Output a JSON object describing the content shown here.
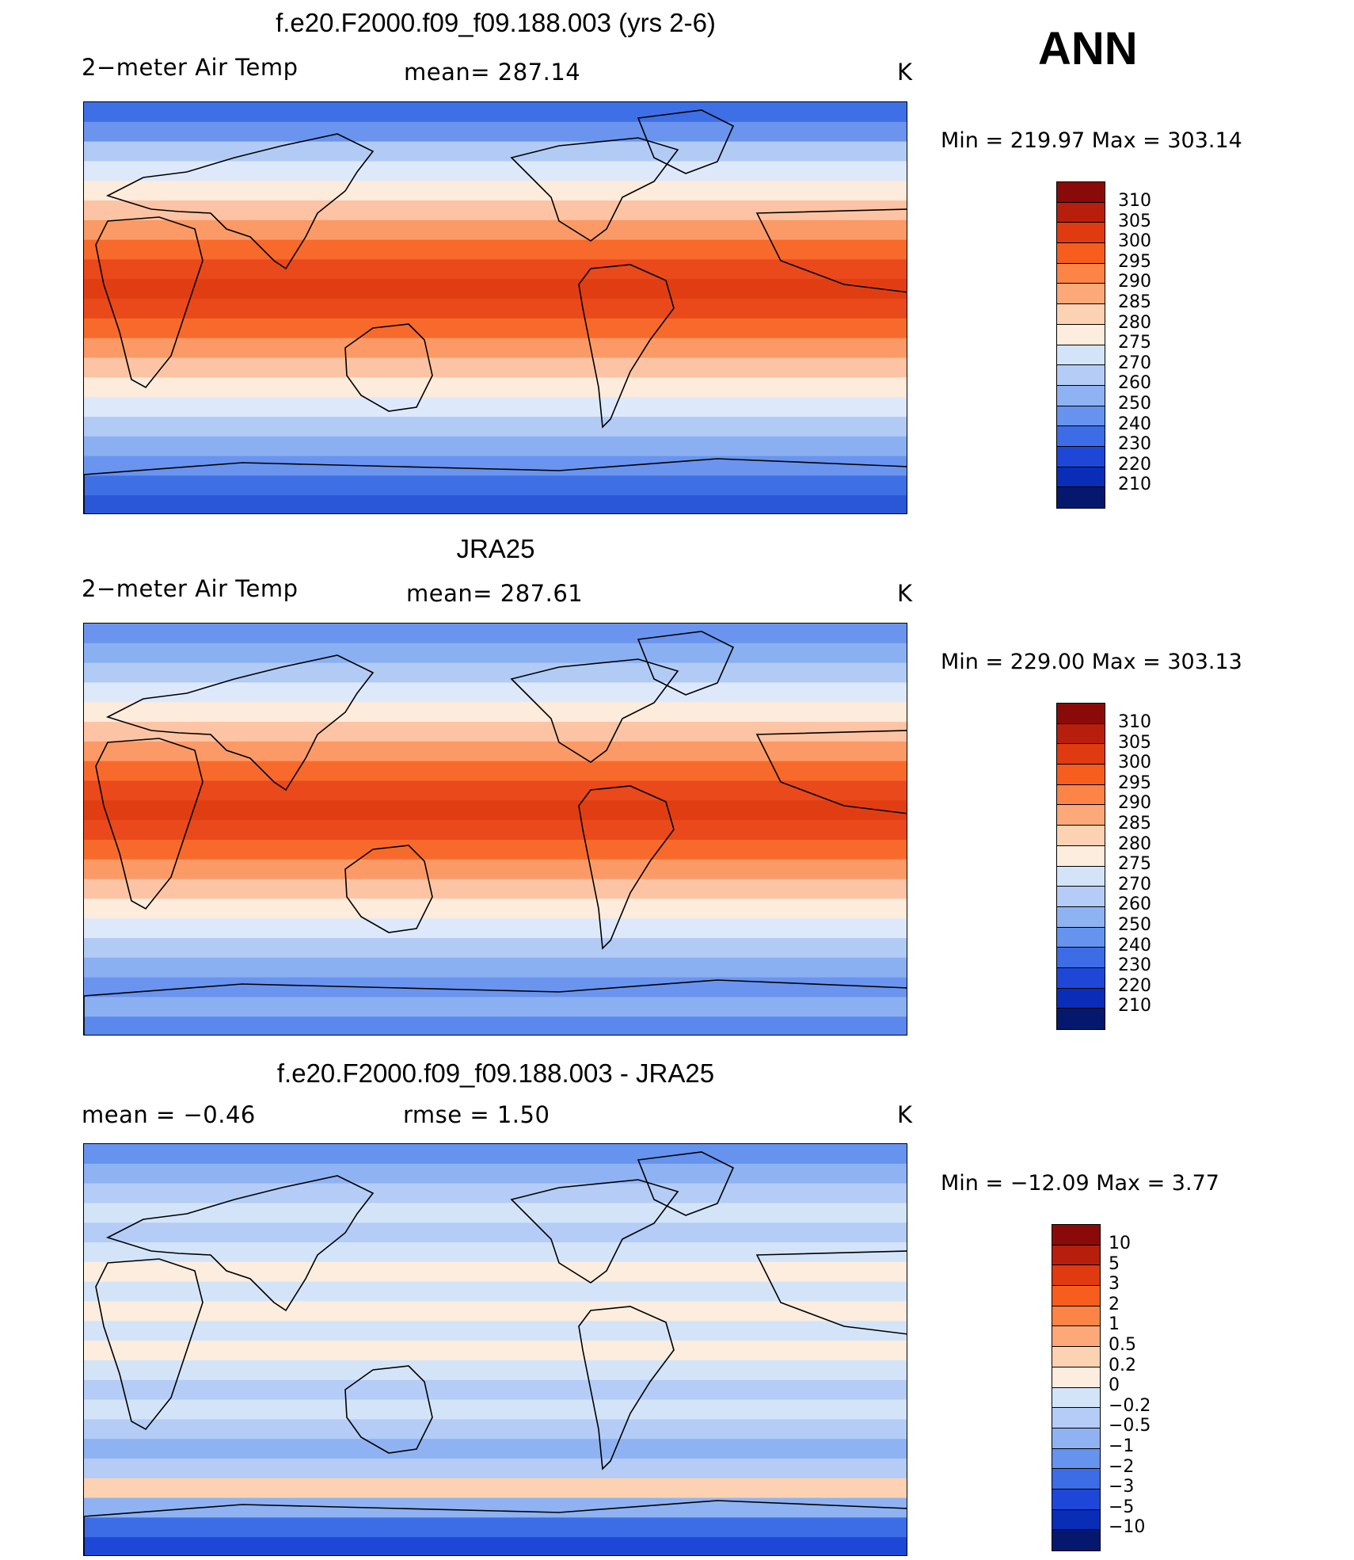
{
  "season": "ANN",
  "panels": [
    {
      "title": "f.e20.F2000.f09_f09.188.003 (yrs 2-6)",
      "left_text": "2−meter Air Temp",
      "center_text": "mean=  287.14",
      "units": "K",
      "minmax": "Min  =  219.97  Max  =  303.14",
      "colorbar_labels": [
        "310",
        "305",
        "300",
        "295",
        "290",
        "285",
        "280",
        "275",
        "270",
        "260",
        "250",
        "240",
        "230",
        "220",
        "210"
      ],
      "colorbar_colors": [
        "#8a0a0a",
        "#b81e0c",
        "#e03a10",
        "#f75e1e",
        "#fb8446",
        "#fca878",
        "#fdd2b2",
        "#fdeddf",
        "#d4e4f8",
        "#b4ccf6",
        "#8fb2f2",
        "#6593ee",
        "#3c6ce6",
        "#1e47d8",
        "#0a2db8",
        "#06186e"
      ],
      "ocean_colors": [
        "#3f6fe5",
        "#6a94ee",
        "#b2cbf5",
        "#dde9fa",
        "#fdebdc",
        "#fcc4a4",
        "#fb9a66",
        "#f76a2c",
        "#e9491b",
        "#e03e12",
        "#e9491b",
        "#f76a2c",
        "#fb9a66",
        "#fcc4a4",
        "#fdebdc",
        "#dde9fa",
        "#b2cbf5",
        "#8ab0f2",
        "#6a94ee",
        "#3f6fe5",
        "#2a56d8"
      ]
    },
    {
      "title": "JRA25",
      "left_text": "2−meter Air Temp",
      "center_text": "mean=  287.61",
      "units": "K",
      "minmax": "Min  =  229.00  Max  =  303.13",
      "colorbar_labels": [
        "310",
        "305",
        "300",
        "295",
        "290",
        "285",
        "280",
        "275",
        "270",
        "260",
        "250",
        "240",
        "230",
        "220",
        "210"
      ],
      "colorbar_colors": [
        "#8a0a0a",
        "#b81e0c",
        "#e03a10",
        "#f75e1e",
        "#fb8446",
        "#fca878",
        "#fdd2b2",
        "#fdeddf",
        "#d4e4f8",
        "#b4ccf6",
        "#8fb2f2",
        "#6593ee",
        "#3c6ce6",
        "#1e47d8",
        "#0a2db8",
        "#06186e"
      ],
      "ocean_colors": [
        "#6a94ee",
        "#8ab0f2",
        "#b2cbf5",
        "#dde9fa",
        "#fdebdc",
        "#fcc4a4",
        "#fb9a66",
        "#f76a2c",
        "#e9491b",
        "#e03e12",
        "#e9491b",
        "#f76a2c",
        "#fb9a66",
        "#fcc4a4",
        "#fdebdc",
        "#dde9fa",
        "#b2cbf5",
        "#8ab0f2",
        "#6a94ee",
        "#8ab0f2",
        "#5a88ec"
      ]
    },
    {
      "title": "f.e20.F2000.f09_f09.188.003 - JRA25",
      "left_text": "mean  =    −0.46",
      "center_text": "rmse  =     1.50",
      "units": "K",
      "minmax": "Min  =  −12.09  Max  =      3.77",
      "colorbar_labels": [
        "10",
        "5",
        "3",
        "2",
        "1",
        "0.5",
        "0.2",
        "0",
        "−0.2",
        "−0.5",
        "−1",
        "−2",
        "−3",
        "−5",
        "−10"
      ],
      "colorbar_colors": [
        "#8a0a0a",
        "#b81e0c",
        "#e03a10",
        "#f75e1e",
        "#fb8446",
        "#fca878",
        "#fdd2b2",
        "#fdeddf",
        "#d4e4f8",
        "#b4ccf6",
        "#8fb2f2",
        "#6593ee",
        "#3c6ce6",
        "#1e47d8",
        "#0a2db8",
        "#06186e"
      ],
      "ocean_colors": [
        "#6593ee",
        "#8fb2f2",
        "#b4ccf6",
        "#d4e4f8",
        "#b4ccf6",
        "#d4e4f8",
        "#fdeddf",
        "#d4e4f8",
        "#fdeddf",
        "#d4e4f8",
        "#fdeddf",
        "#d4e4f8",
        "#b4ccf6",
        "#d4e4f8",
        "#b4ccf6",
        "#8fb2f2",
        "#b4ccf6",
        "#fdd2b2",
        "#8fb2f2",
        "#3c6ce6",
        "#1e47d8"
      ]
    }
  ]
}
